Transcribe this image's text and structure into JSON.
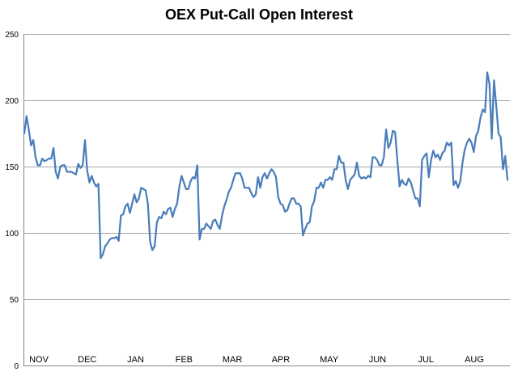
{
  "chart_data": {
    "type": "line",
    "title": "OEX Put-Call Open Interest",
    "xlabel": "",
    "ylabel": "",
    "ylim": [
      0,
      250
    ],
    "yticks": [
      0,
      50,
      100,
      150,
      200,
      250
    ],
    "xticks": [
      "NOV",
      "DEC",
      "JAN",
      "FEB",
      "MAR",
      "APR",
      "MAY",
      "JUN",
      "JUL",
      "AUG"
    ],
    "grid": true,
    "legend": "none",
    "colors": {
      "line": "#4a7ebb",
      "grid": "#a6a6a6",
      "axis": "#868686"
    },
    "series": [
      {
        "values": [
          175,
          188,
          178,
          166,
          170,
          157,
          151,
          151,
          156,
          154,
          155,
          156,
          156,
          164,
          146,
          141,
          150,
          151,
          151,
          146,
          146,
          146,
          145,
          144,
          152,
          149,
          151,
          170,
          147,
          138,
          143,
          138,
          135,
          137,
          81,
          84,
          90,
          92,
          95,
          96,
          96,
          97,
          94,
          113,
          114,
          120,
          122,
          115,
          122,
          129,
          123,
          126,
          134,
          133,
          132,
          122,
          93,
          87,
          90,
          108,
          112,
          111,
          116,
          114,
          118,
          119,
          112,
          118,
          122,
          135,
          143,
          138,
          133,
          133,
          139,
          142,
          141,
          151,
          95,
          103,
          103,
          107,
          105,
          103,
          109,
          110,
          106,
          103,
          113,
          120,
          125,
          131,
          134,
          140,
          145,
          145,
          145,
          141,
          134,
          134,
          134,
          130,
          127,
          129,
          142,
          134,
          142,
          145,
          141,
          145,
          148,
          146,
          142,
          127,
          122,
          121,
          116,
          117,
          122,
          126,
          126,
          122,
          122,
          120,
          98,
          103,
          107,
          108,
          120,
          124,
          134,
          134,
          138,
          134,
          140,
          140,
          142,
          140,
          148,
          148,
          158,
          153,
          153,
          140,
          133,
          140,
          142,
          144,
          153,
          143,
          141,
          142,
          141,
          143,
          142,
          157,
          157,
          155,
          151,
          151,
          157,
          178,
          164,
          168,
          177,
          176,
          155,
          135,
          140,
          137,
          136,
          141,
          138,
          132,
          126,
          126,
          120,
          155,
          158,
          160,
          142,
          155,
          162,
          157,
          159,
          155,
          160,
          162,
          168,
          166,
          168,
          136,
          139,
          134,
          139,
          153,
          163,
          168,
          171,
          168,
          161,
          173,
          177,
          187,
          193,
          191,
          221,
          212,
          171,
          215,
          196,
          175,
          172,
          148,
          158,
          140
        ]
      }
    ]
  }
}
